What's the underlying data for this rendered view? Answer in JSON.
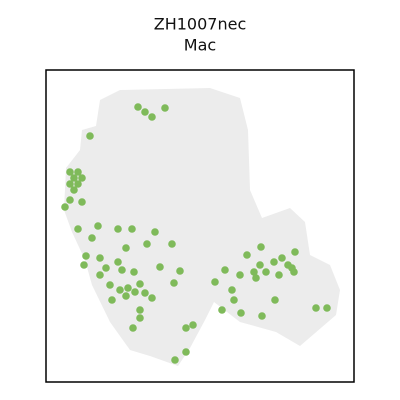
{
  "chart_data": {
    "type": "scatter",
    "title": "ZH1007nec",
    "subtitle": "Mac",
    "xlim": [
      0,
      308
    ],
    "ylim": [
      312,
      0
    ],
    "series": [
      {
        "color": "#7fba5a",
        "x": [
          24,
          32,
          28,
          24,
          32,
          28,
          36,
          24,
          36,
          19,
          44,
          92,
          99,
          106,
          119,
          52,
          32,
          46,
          72,
          86,
          80,
          101,
          109,
          126,
          40,
          38,
          54,
          60,
          54,
          72,
          76,
          88,
          114,
          134,
          64,
          74,
          82,
          89,
          80,
          94,
          99,
          106,
          66,
          94,
          94,
          87,
          128,
          140,
          147,
          140,
          129,
          179,
          169,
          186,
          188,
          176,
          195,
          216,
          201,
          215,
          228,
          236,
          242,
          246,
          249,
          233,
          220,
          208,
          214,
          210,
          229,
          248,
          194,
          270,
          281
        ],
        "values": [
          102,
          102,
          108,
          114,
          114,
          120,
          108,
          130,
          132,
          137,
          66,
          37,
          42,
          47,
          38,
          156,
          159,
          168,
          159,
          159,
          178,
          174,
          162,
          174,
          186,
          195,
          188,
          198,
          205,
          192,
          200,
          202,
          197,
          201,
          215,
          220,
          218,
          222,
          226,
          214,
          223,
          228,
          230,
          240,
          248,
          258,
          213,
          258,
          255,
          282,
          290,
          200,
          212,
          220,
          230,
          240,
          243,
          246,
          185,
          177,
          192,
          188,
          195,
          198,
          182,
          205,
          202,
          202,
          195,
          208,
          230,
          202,
          205,
          238,
          238
        ]
      }
    ]
  }
}
